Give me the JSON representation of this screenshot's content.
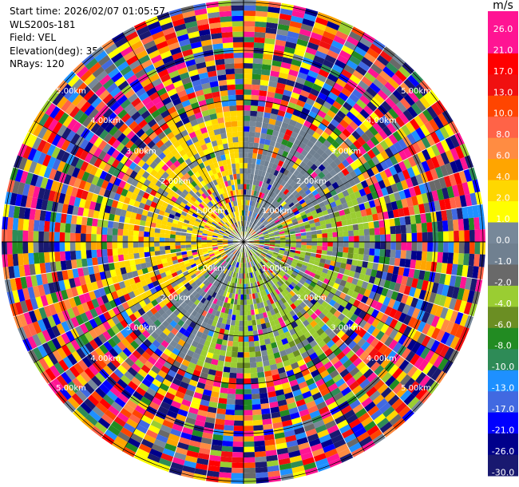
{
  "header": {
    "start_time": "Start time: 2026/02/07 01:05:57",
    "instrument": "WLS200s-181",
    "field": "Field: VEL",
    "elevation": "Elevation(deg): 35.00",
    "nrays": "NRays: 120"
  },
  "colorbar": {
    "unit": "m/s",
    "labels": [
      "26.0",
      "21.0",
      "17.0",
      "13.0",
      "10.0",
      "8.0",
      "6.0",
      "4.0",
      "2.0",
      "1.0",
      "0.0",
      "-1.0",
      "-2.0",
      "-4.0",
      "-6.0",
      "-8.0",
      "-10.0",
      "-13.0",
      "-17.0",
      "-21.0",
      "-26.0",
      "-30.0"
    ],
    "colors": [
      "#ff1493",
      "#ff1493",
      "#ff0000",
      "#f01010",
      "#ff4500",
      "#ff6347",
      "#ff8c42",
      "#ffa500",
      "#ffd700",
      "#ffff00",
      "#778899",
      "#708090",
      "#696969",
      "#9acd32",
      "#6b8e23",
      "#228b22",
      "#2e8b57",
      "#1e90ff",
      "#4169e1",
      "#0000ff",
      "#00008b",
      "#191970",
      "#191970"
    ]
  },
  "chart_data": {
    "type": "ppi",
    "field": "VEL",
    "nrays": 120,
    "elevation_deg": 35.0,
    "range_rings": [
      "1.00km",
      "2.00km",
      "3.00km",
      "4.00km",
      "5.00km"
    ]
  }
}
